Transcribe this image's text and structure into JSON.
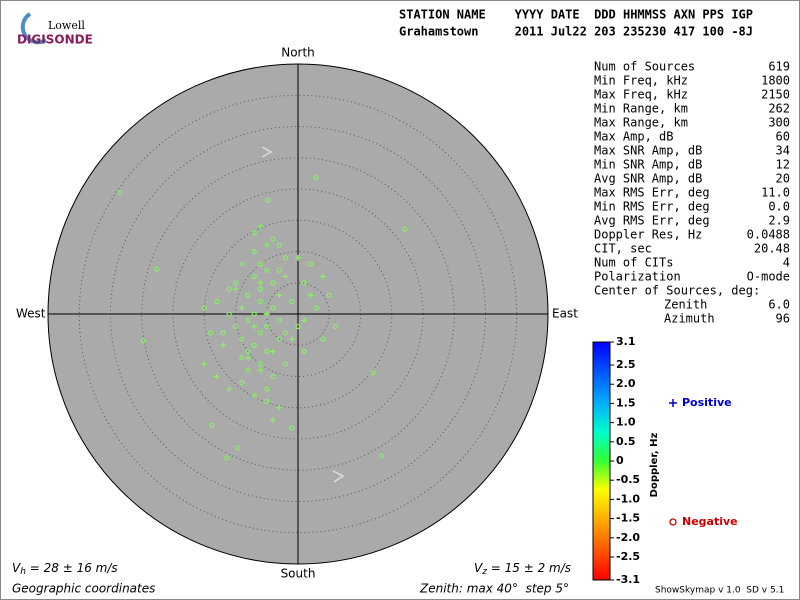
{
  "logo": {
    "top": "Lowell",
    "bottom": "DIGISONDE"
  },
  "header": {
    "row1": "STATION NAME    YYYY DATE  DDD HHMMSS AXN PPS IGP",
    "row2": "Grahamstown     2011 Jul22 203 235230 417 100 -8J"
  },
  "stats": [
    {
      "label": "Num of Sources",
      "value": "619"
    },
    {
      "label": "Min Freq, kHz",
      "value": "1800"
    },
    {
      "label": "Max Freq, kHz",
      "value": "2150"
    },
    {
      "label": "Min Range, km",
      "value": "262"
    },
    {
      "label": "Max Range, km",
      "value": "300"
    },
    {
      "label": "Max Amp, dB",
      "value": "60"
    },
    {
      "label": "Max SNR Amp, dB",
      "value": "34"
    },
    {
      "label": "Min SNR Amp, dB",
      "value": "12"
    },
    {
      "label": "Avg SNR Amp, dB",
      "value": "20"
    },
    {
      "label": "Max RMS Err, deg",
      "value": "11.0"
    },
    {
      "label": "Min RMS Err, deg",
      "value": "0.0"
    },
    {
      "label": "Avg RMS Err, deg",
      "value": "2.9"
    },
    {
      "label": "Doppler Res, Hz",
      "value": "0.0488"
    },
    {
      "label": "CIT, sec",
      "value": "20.48"
    },
    {
      "label": "Num of CITs",
      "value": "4"
    },
    {
      "label": "Polarization",
      "value": "O-mode"
    }
  ],
  "center": {
    "title": "Center of Sources, deg:",
    "rows": [
      {
        "label": "Zenith",
        "value": "6.0"
      },
      {
        "label": "Azimuth",
        "value": "96"
      }
    ]
  },
  "footer": {
    "vh": "V",
    "vh_sub": "h",
    "vh_rest": " = 28 ± 16 m/s",
    "vz": "V",
    "vz_sub": "z",
    "vz_rest": " = 15 ± 2 m/s",
    "coords": "Geographic coordinates",
    "zenith": "Zenith: max 40°  step 5°",
    "version": "ShowSkymap v 1.0  SD v 5.1"
  },
  "chart_data": {
    "type": "skymap",
    "directions": {
      "north": "North",
      "south": "South",
      "east": "East",
      "west": "West"
    },
    "xlim": [
      -40,
      40
    ],
    "ylim": [
      -40,
      40
    ],
    "rticks": [
      5,
      10,
      15,
      20,
      25,
      30,
      35,
      40
    ],
    "grid": true,
    "series": [
      {
        "name": "Positive",
        "color": "#88ee66",
        "label_color": "#0000cc",
        "marker": "plus",
        "x": [
          -5,
          -7,
          -3,
          -9,
          -1,
          -6,
          -4,
          -12,
          -2,
          2,
          -8,
          -10,
          0,
          -6,
          -13,
          4,
          -5,
          -7,
          -3,
          -11,
          -15,
          -9,
          -4,
          1,
          -6
        ],
        "y": [
          0,
          -2,
          3,
          1,
          -4,
          5,
          -6,
          -5,
          6,
          3,
          -7,
          4,
          9,
          -9,
          -10,
          6,
          11,
          -13,
          -15,
          -12,
          -8,
          8,
          -17,
          -1,
          14
        ]
      },
      {
        "name": "Negative",
        "color": "#88ee66",
        "label_color": "#cc0000",
        "marker": "circle",
        "x": [
          -8,
          -6,
          -5,
          -7,
          -9,
          -4,
          -3,
          -6,
          -10,
          -7,
          -5,
          -8,
          -2,
          -6,
          -4,
          -9,
          -11,
          -7,
          -5,
          -3,
          -1,
          0,
          1,
          2,
          -12,
          -13,
          -6,
          -8,
          -4,
          -2,
          3,
          4,
          5,
          -7,
          -9,
          -5,
          -3,
          -10,
          -6,
          -8,
          -14,
          -15,
          -4,
          1,
          6,
          -2,
          -7,
          -5,
          -11,
          -3,
          -28.5,
          2.9,
          17.1,
          13.4,
          -13.8,
          -9.6,
          -24.8,
          -4.8,
          -22.6,
          12,
          -1,
          -11.4
        ],
        "y": [
          -1,
          -3,
          -2,
          0,
          -4,
          1,
          -1,
          2,
          -2,
          -5,
          -6,
          3,
          -3,
          4,
          5,
          -7,
          0,
          6,
          7,
          -4,
          2,
          -2,
          5,
          8,
          -3,
          2,
          -8,
          -9,
          -10,
          9,
          1,
          -4,
          3,
          10,
          -11,
          -12,
          11,
          5,
          8,
          -6,
          -3,
          1,
          12,
          -6,
          -2,
          -8,
          13,
          -14,
          4,
          7,
          19.4,
          21.8,
          13.6,
          -22.7,
          -17.8,
          -21.4,
          -4.3,
          18.2,
          7.2,
          -9.4,
          -18.2,
          -23
        ]
      }
    ],
    "colorbar": {
      "label": "Doppler, Hz",
      "clim": [
        -3.1,
        3.1
      ],
      "cticks": [
        3.1,
        2.5,
        {
          "value": 2,
          "label": "2.0"
        },
        1.5,
        {
          "value": 1,
          "label": "1.0"
        },
        0.5,
        0,
        -0.5,
        {
          "value": -1,
          "label": "-1.0"
        },
        -1.5,
        {
          "value": -2,
          "label": "-2.0"
        },
        -2.5,
        -3.1
      ]
    }
  }
}
